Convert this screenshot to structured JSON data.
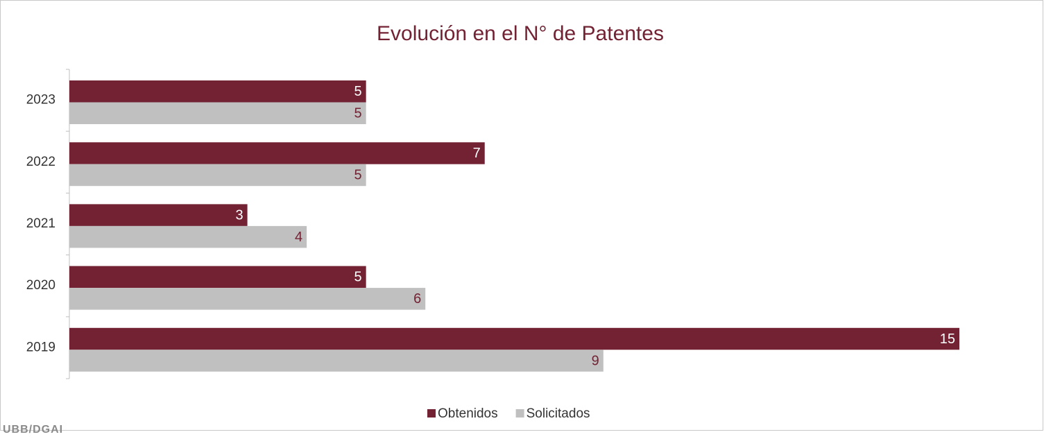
{
  "chart_data": {
    "type": "hbar",
    "title": "Evolución en el N° de Patentes",
    "categories": [
      "2023",
      "2022",
      "2021",
      "2020",
      "2019"
    ],
    "series": [
      {
        "name": "Obtenidos",
        "color": "#722233",
        "label_color": "#ffffff",
        "values": [
          5,
          7,
          3,
          5,
          15
        ]
      },
      {
        "name": "Solicitados",
        "color": "#c0c0c0",
        "label_color": "#722233",
        "values": [
          5,
          5,
          4,
          6,
          9
        ]
      }
    ],
    "legend": "bottom"
  },
  "footer": "UBB/DGAI"
}
